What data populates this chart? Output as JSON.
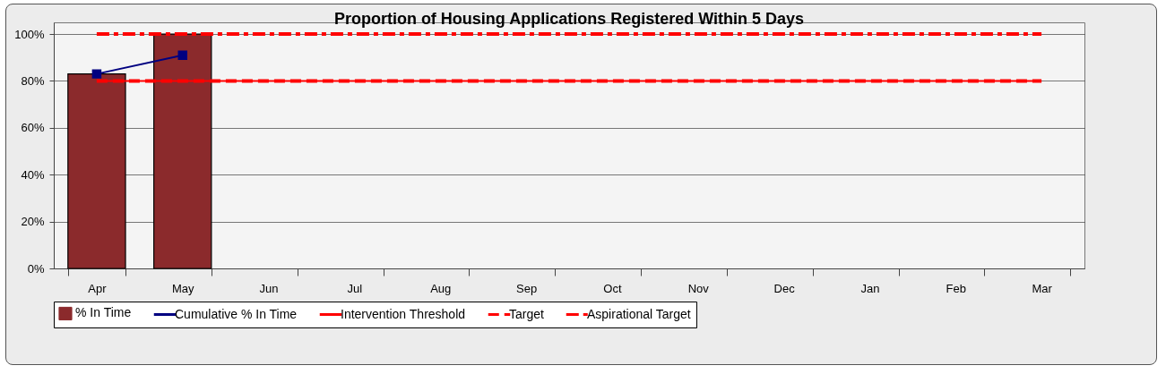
{
  "chart_data": {
    "type": "bar",
    "title": "Proportion of Housing Applications Registered Within 5 Days",
    "categories": [
      "Apr",
      "May",
      "Jun",
      "Jul",
      "Aug",
      "Sep",
      "Oct",
      "Nov",
      "Dec",
      "Jan",
      "Feb",
      "Mar"
    ],
    "series": [
      {
        "name": "% In Time",
        "color": "#8b2a2c",
        "values": [
          83,
          100,
          null,
          null,
          null,
          null,
          null,
          null,
          null,
          null,
          null,
          null
        ]
      },
      {
        "name": "Cumulative % In Time",
        "type": "line",
        "color": "#000080",
        "marker": "square",
        "line_style": "solid",
        "values": [
          83,
          91,
          null,
          null,
          null,
          null,
          null,
          null,
          null,
          null,
          null,
          null
        ]
      },
      {
        "name": "Intervention Threshold",
        "type": "line",
        "color": "#ff0000",
        "line_style": "solid",
        "values": [
          80,
          80,
          80,
          80,
          80,
          80,
          80,
          80,
          80,
          80,
          80,
          80
        ]
      },
      {
        "name": "Target",
        "type": "line",
        "color": "#ff0000",
        "line_style": "dashed",
        "values": [
          80,
          80,
          80,
          80,
          80,
          80,
          80,
          80,
          80,
          80,
          80,
          80
        ]
      },
      {
        "name": "Aspirational Target",
        "type": "line",
        "color": "#ff0000",
        "line_style": "dashdot",
        "values": [
          100,
          100,
          100,
          100,
          100,
          100,
          100,
          100,
          100,
          100,
          100,
          100
        ]
      }
    ],
    "ylim": [
      0,
      105
    ],
    "yticks": [
      {
        "value": 0,
        "label": "0%"
      },
      {
        "value": 20,
        "label": "20%"
      },
      {
        "value": 40,
        "label": "40%"
      },
      {
        "value": 60,
        "label": "60%"
      },
      {
        "value": 80,
        "label": "80%"
      },
      {
        "value": 100,
        "label": "100%"
      }
    ],
    "grid": "y",
    "legend": "bottom"
  }
}
